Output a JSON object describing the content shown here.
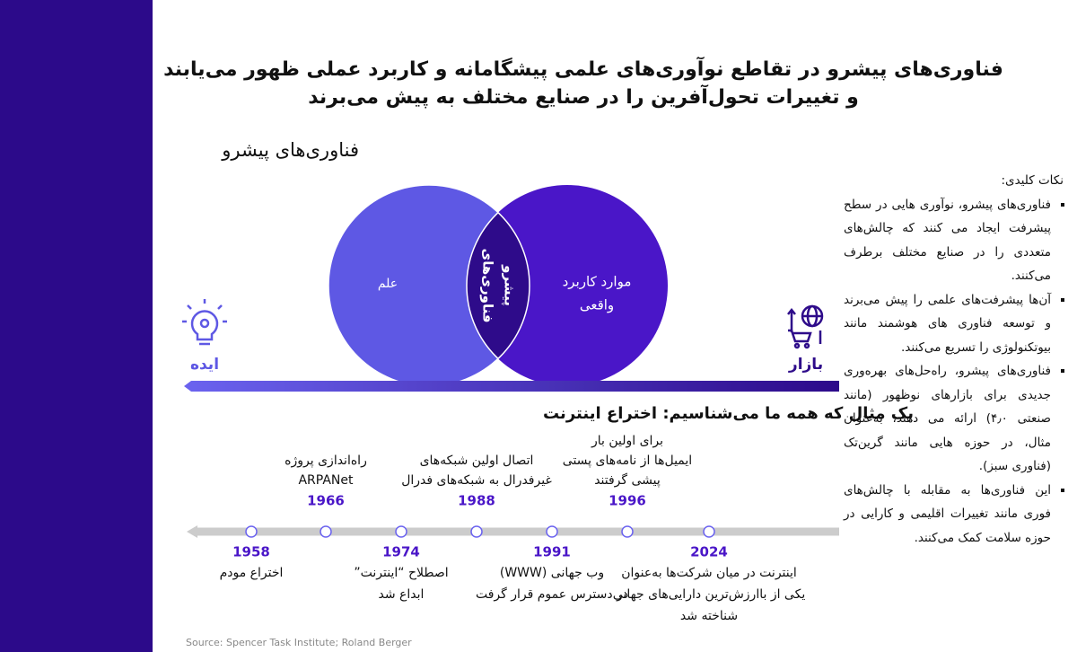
{
  "title_lines": [
    "فناوری‌های پیشرو در تقاطع نوآوری‌های علمی پیشگامانه و کاربرد عملی ظهور می‌یابند",
    "و تغییرات تحول‌آفرین را در صنایع مختلف به پیش می‌برند"
  ],
  "section_title": "فناوری‌های پیشرو",
  "venn": {
    "left": "علم",
    "right_lines": [
      "موارد کاربرد",
      "واقعی"
    ],
    "center_lines": [
      "فناوری‌های",
      "پیشرو"
    ]
  },
  "idea_label": "ایده",
  "market_label": "بازار",
  "timeline": {
    "heading": "یک مثال که همه ما می‌شناسیم: اختراع اینترنت",
    "events": [
      {
        "year": 1958,
        "lines": [
          "اختراع مودم"
        ]
      },
      {
        "year": 1966,
        "lines": [
          "راه‌اندازی پروژه",
          "ARPANet"
        ]
      },
      {
        "year": 1974,
        "lines": [
          "اصطلاح “اینترنت”",
          "ابداع شد"
        ]
      },
      {
        "year": 1988,
        "lines": [
          "اتصال اولین شبکه‌های",
          "غیرفدرال به شبکه‌های فدرال"
        ]
      },
      {
        "year": 1991,
        "lines": [
          "وب جهانی (WWW)",
          "در دسترس عموم قرار گرفت"
        ]
      },
      {
        "year": 1996,
        "lines": [
          "برای اولین بار",
          "ایمیل‌ها از نامه‌های پستی",
          "پیشی گرفتند"
        ]
      },
      {
        "year": 2024,
        "lines": [
          "اینترنت در میان شرکت‌ها به‌عنوان",
          "یکی از باارزش‌ترین دارایی‌های جهانی",
          "شناخته شد"
        ]
      }
    ]
  },
  "key_points": {
    "heading": "نکات کلیدی:",
    "items": [
      "فناوری‌های پیشرو، نوآوری هایی در سطح پیشرفت ایجاد می کنند که چالش‌های متعددی را در صنایع مختلف برطرف می‌کنند.",
      "آن‌ها پیشرفت‌های علمی را پیش می‌برند و توسعه فناوری های هوشمند مانند بیوتکنولوژی را تسریع می‌کنند.",
      "فناوری‌های پیشرو، راه‌حل‌های بهره‌وری جدیدی برای بازارهای نوظهور (مانند صنعتی ۴٫۰) ارائه می دهند، به‌عنوان مثال، در حوزه هایی مانند گرین‌تک (فناوری سبز).",
      "این فناوری‌ها به مقابله با چالش‌های فوری مانند تغییرات اقلیمی و کارایی در حوزه سلامت کمک می‌کنند."
    ]
  },
  "source": "Source: Spencer Task Institute; Roland Berger"
}
